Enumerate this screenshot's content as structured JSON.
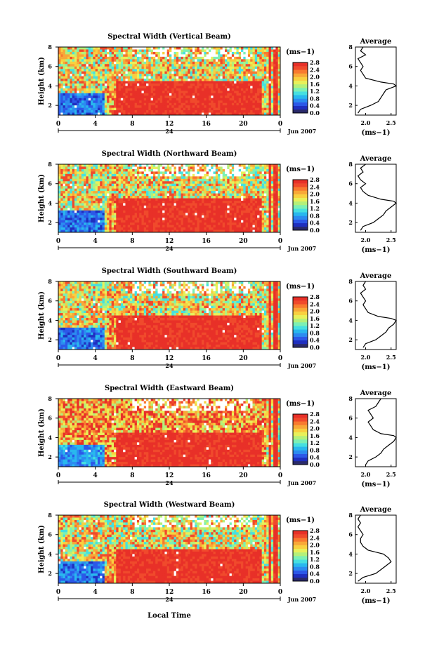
{
  "figure": {
    "xlabel_bottom": "Local Time",
    "date_label": "Jun 2007",
    "day_label": "24",
    "avg_title": "Average",
    "unit_label": "(ms",
    "unit_sup": "−1",
    "unit_close": ")"
  },
  "chart_data": [
    {
      "type": "heatmap",
      "title": "Spectral Width (Vertical Beam)",
      "ylabel": "Height (km)",
      "xlabel": "",
      "x_ticks": [
        "0",
        "4",
        "8",
        "12",
        "16",
        "20",
        "0"
      ],
      "y_ticks": [
        "2",
        "4",
        "6",
        "8"
      ],
      "xlim": [
        0,
        24
      ],
      "ylim": [
        1,
        8
      ],
      "colorbar": {
        "ticks": [
          "0.0",
          "0.4",
          "0.8",
          "1.2",
          "1.6",
          "2.0",
          "2.4",
          "2.8"
        ],
        "range": [
          0,
          2.8
        ]
      },
      "average_profile": {
        "xlabel": "(ms−1)",
        "x_ticks": [
          "2.0",
          "2.5"
        ],
        "y_ticks": [
          "2",
          "4",
          "6",
          "8"
        ],
        "heights": [
          1.2,
          1.6,
          2.0,
          2.4,
          2.8,
          3.2,
          3.6,
          4.0,
          4.2,
          4.4,
          4.8,
          5.2,
          5.6,
          6.0,
          6.4,
          6.8,
          7.2,
          7.6,
          8.0
        ],
        "values": [
          1.85,
          1.9,
          2.1,
          2.25,
          2.3,
          2.35,
          2.4,
          2.6,
          2.55,
          2.3,
          2.0,
          1.95,
          1.9,
          1.95,
          1.9,
          1.85,
          2.0,
          1.9,
          1.95
        ]
      }
    },
    {
      "type": "heatmap",
      "title": "Spectral Width (Northward Beam)",
      "ylabel": "Height (km)",
      "xlabel": "",
      "x_ticks": [
        "0",
        "4",
        "8",
        "12",
        "16",
        "20",
        "0"
      ],
      "y_ticks": [
        "2",
        "4",
        "6",
        "8"
      ],
      "xlim": [
        0,
        24
      ],
      "ylim": [
        1,
        8
      ],
      "colorbar": {
        "ticks": [
          "0.0",
          "0.4",
          "0.8",
          "1.2",
          "1.6",
          "2.0",
          "2.4",
          "2.8"
        ],
        "range": [
          0,
          2.8
        ]
      },
      "average_profile": {
        "xlabel": "(ms−1)",
        "x_ticks": [
          "2.0",
          "2.5"
        ],
        "y_ticks": [
          "2",
          "4",
          "6",
          "8"
        ],
        "heights": [
          1.2,
          1.6,
          2.0,
          2.4,
          2.8,
          3.2,
          3.6,
          4.0,
          4.2,
          4.4,
          4.8,
          5.2,
          5.6,
          6.0,
          6.4,
          6.8,
          7.2,
          7.6,
          8.0
        ],
        "values": [
          1.9,
          1.95,
          2.15,
          2.25,
          2.35,
          2.4,
          2.5,
          2.6,
          2.55,
          2.3,
          2.05,
          1.95,
          1.9,
          2.0,
          1.9,
          1.85,
          1.95,
          1.9,
          2.0
        ]
      }
    },
    {
      "type": "heatmap",
      "title": "Spectral Width (Southward Beam)",
      "ylabel": "Height (km)",
      "xlabel": "",
      "x_ticks": [
        "0",
        "4",
        "8",
        "12",
        "16",
        "20",
        "0"
      ],
      "y_ticks": [
        "2",
        "4",
        "6",
        "8"
      ],
      "xlim": [
        0,
        24
      ],
      "ylim": [
        1,
        8
      ],
      "colorbar": {
        "ticks": [
          "0.0",
          "0.4",
          "0.8",
          "1.2",
          "1.6",
          "2.0",
          "2.4",
          "2.8"
        ],
        "range": [
          0,
          2.8
        ]
      },
      "average_profile": {
        "xlabel": "(ms−1)",
        "x_ticks": [
          "2.0",
          "2.5"
        ],
        "y_ticks": [
          "2",
          "4",
          "6",
          "8"
        ],
        "heights": [
          1.2,
          1.6,
          2.0,
          2.4,
          2.8,
          3.2,
          3.6,
          4.0,
          4.2,
          4.4,
          4.8,
          5.2,
          5.6,
          6.0,
          6.4,
          6.8,
          7.2,
          7.6,
          8.0
        ],
        "values": [
          1.95,
          2.0,
          2.2,
          2.3,
          2.4,
          2.45,
          2.55,
          2.6,
          2.5,
          2.25,
          2.05,
          2.0,
          1.95,
          2.0,
          1.95,
          1.9,
          2.0,
          1.95,
          2.0
        ]
      }
    },
    {
      "type": "heatmap",
      "title": "Spectral Width (Eastward Beam)",
      "ylabel": "Height (km)",
      "xlabel": "",
      "x_ticks": [
        "0",
        "4",
        "8",
        "12",
        "16",
        "20",
        "0"
      ],
      "y_ticks": [
        "2",
        "4",
        "6",
        "8"
      ],
      "xlim": [
        0,
        24
      ],
      "ylim": [
        1,
        8
      ],
      "colorbar": {
        "ticks": [
          "0.0",
          "0.4",
          "0.8",
          "1.2",
          "1.6",
          "2.0",
          "2.4",
          "2.8"
        ],
        "range": [
          0,
          2.8
        ]
      },
      "average_profile": {
        "xlabel": "(ms−1)",
        "x_ticks": [
          "2.0",
          "2.5"
        ],
        "y_ticks": [
          "2",
          "4",
          "6",
          "8"
        ],
        "heights": [
          1.2,
          1.6,
          2.0,
          2.4,
          2.8,
          3.2,
          3.6,
          4.0,
          4.2,
          4.4,
          4.8,
          5.2,
          5.6,
          6.0,
          6.4,
          6.8,
          7.2,
          7.6,
          8.0
        ],
        "values": [
          2.0,
          2.05,
          2.2,
          2.3,
          2.35,
          2.45,
          2.55,
          2.6,
          2.55,
          2.3,
          2.15,
          2.1,
          2.05,
          2.15,
          2.1,
          2.05,
          2.2,
          2.25,
          2.3
        ]
      }
    },
    {
      "type": "heatmap",
      "title": "Spectral Width (Westward Beam)",
      "ylabel": "Height (km)",
      "xlabel": "Local Time",
      "x_ticks": [
        "0",
        "4",
        "8",
        "12",
        "16",
        "20",
        "0"
      ],
      "y_ticks": [
        "2",
        "4",
        "6",
        "8"
      ],
      "xlim": [
        0,
        24
      ],
      "ylim": [
        1,
        8
      ],
      "colorbar": {
        "ticks": [
          "0.0",
          "0.4",
          "0.8",
          "1.2",
          "1.6",
          "2.0",
          "2.4",
          "2.8"
        ],
        "range": [
          0,
          2.8
        ]
      },
      "average_profile": {
        "xlabel": "(ms−1)",
        "x_ticks": [
          "2.0",
          "2.5"
        ],
        "y_ticks": [
          "2",
          "4",
          "6",
          "8"
        ],
        "heights": [
          1.2,
          1.6,
          2.0,
          2.4,
          2.8,
          3.2,
          3.6,
          4.0,
          4.2,
          4.4,
          4.8,
          5.2,
          5.6,
          6.0,
          6.4,
          6.8,
          7.2,
          7.6,
          8.0
        ],
        "values": [
          1.85,
          1.95,
          2.2,
          2.3,
          2.4,
          2.5,
          2.45,
          2.35,
          2.2,
          2.05,
          1.95,
          1.9,
          1.9,
          1.95,
          1.9,
          1.85,
          1.9,
          1.85,
          1.9
        ]
      }
    }
  ],
  "colormap": [
    "#2a2a6a",
    "#1f2fbf",
    "#2c58e8",
    "#2b8cf0",
    "#29b8ee",
    "#46e0e0",
    "#7cf0b4",
    "#b4f07a",
    "#e8f05a",
    "#f8d040",
    "#f8a838",
    "#f87a30",
    "#f04a2c",
    "#e83028"
  ]
}
